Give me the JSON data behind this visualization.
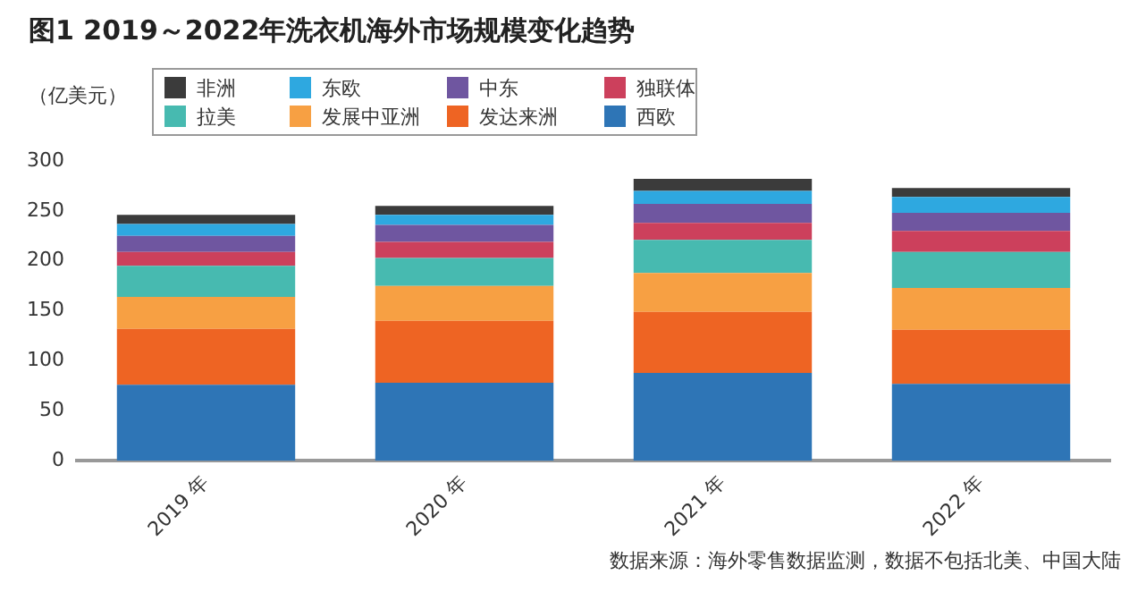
{
  "chart_data": {
    "type": "bar",
    "title": "图1  2019～2022年洗衣机海外市场规模变化趋势",
    "ylabel": "（亿美元）",
    "categories": [
      "2019 年",
      "2020 年",
      "2021 年",
      "2022 年"
    ],
    "stacked": true,
    "legend": "top",
    "grid": false,
    "ylim": [
      0,
      300
    ],
    "yticks": [
      0,
      50,
      100,
      150,
      200,
      250,
      300
    ],
    "series": [
      {
        "name": "西欧",
        "color": "#2e75b6",
        "values": [
          76,
          78,
          88,
          77
        ]
      },
      {
        "name": "发达来洲",
        "color": "#ee6423",
        "values": [
          56,
          62,
          61,
          54
        ]
      },
      {
        "name": "发展中亚洲",
        "color": "#f7a043",
        "values": [
          32,
          35,
          39,
          42
        ]
      },
      {
        "name": "拉美",
        "color": "#47bab0",
        "values": [
          31,
          28,
          33,
          36
        ]
      },
      {
        "name": "独联体",
        "color": "#cc405c",
        "values": [
          14,
          16,
          17,
          21
        ]
      },
      {
        "name": "中东",
        "color": "#6f56a0",
        "values": [
          16,
          17,
          19,
          18
        ]
      },
      {
        "name": "东欧",
        "color": "#2ea8e0",
        "values": [
          12,
          10,
          13,
          16
        ]
      },
      {
        "name": "非洲",
        "color": "#3b3b3b",
        "values": [
          9,
          9,
          12,
          9
        ]
      }
    ],
    "annotations": [
      "数据来源：海外零售数据监测，数据不包括北美、中国大陆"
    ]
  }
}
